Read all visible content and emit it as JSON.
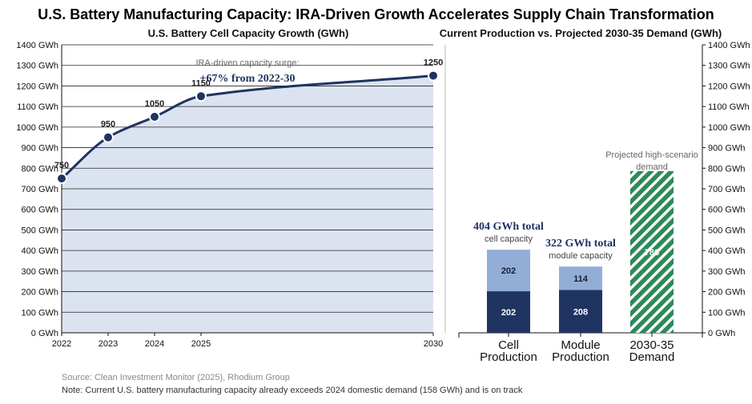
{
  "title": "U.S. Battery Manufacturing Capacity: IRA-Driven Growth Accelerates Supply Chain Transformation",
  "footer": {
    "source": "Source: Clean Investment Monitor (2025), Rhodium Group",
    "note": "Note: Current U.S. battery manufacturing capacity already exceeds 2024 domestic demand (158 GWh) and is on track"
  },
  "chart_data": [
    {
      "type": "area",
      "title": "U.S. Battery Cell Capacity Growth (GWh)",
      "x": [
        2022,
        2023,
        2024,
        2025,
        2030
      ],
      "values": [
        750,
        950,
        1050,
        1150,
        1250
      ],
      "data_labels": [
        "750",
        "950",
        "1050",
        "1150",
        "1250"
      ],
      "xlim": [
        2022,
        2030
      ],
      "ylim": [
        0,
        1400
      ],
      "yticks": [
        "0 GWh",
        "100 GWh",
        "200 GWh",
        "300 GWh",
        "400 GWh",
        "500 GWh",
        "600 GWh",
        "700 GWh",
        "800 GWh",
        "900 GWh",
        "1000 GWh",
        "1100 GWh",
        "1200 GWh",
        "1300 GWh",
        "1400 GWh"
      ],
      "xticks": [
        "2022",
        "2023",
        "2024",
        "2025",
        "2030"
      ],
      "grid": true,
      "annotation": {
        "line1": "IRA-driven capacity surge:",
        "line2": "+67% from 2022-30"
      },
      "colors": {
        "line": "#1f3461",
        "fill": "#dce3f0",
        "grid": "#222222"
      }
    },
    {
      "type": "bar",
      "title": "Current Production vs. Projected 2030-35 Demand (GWh)",
      "categories": [
        [
          "Cell",
          "Production"
        ],
        [
          "Module",
          "Production"
        ],
        [
          "2030-35",
          "Demand"
        ]
      ],
      "series": [
        {
          "values": [
            202,
            208,
            786
          ],
          "labels": [
            "202",
            "208",
            "786"
          ]
        },
        {
          "values": [
            202,
            114,
            0
          ],
          "labels": [
            "202",
            "114",
            ""
          ]
        }
      ],
      "ylim": [
        0,
        1400
      ],
      "yticks": [
        "0 GWh",
        "100 GWh",
        "200 GWh",
        "300 GWh",
        "400 GWh",
        "500 GWh",
        "600 GWh",
        "700 GWh",
        "800 GWh",
        "900 GWh",
        "1000 GWh",
        "1100 GWh",
        "1200 GWh",
        "1300 GWh",
        "1400 GWh"
      ],
      "totals": [
        {
          "big": "404 GWh total",
          "small": "cell capacity"
        },
        {
          "big": "322 GWh total",
          "small": "module capacity"
        }
      ],
      "demand_label": [
        "Projected high-scenario",
        "demand"
      ],
      "colors": {
        "base": "#1f3461",
        "top": "#93aed6",
        "demand": "#2d8a5a",
        "total_text": "#1f3461"
      }
    }
  ]
}
